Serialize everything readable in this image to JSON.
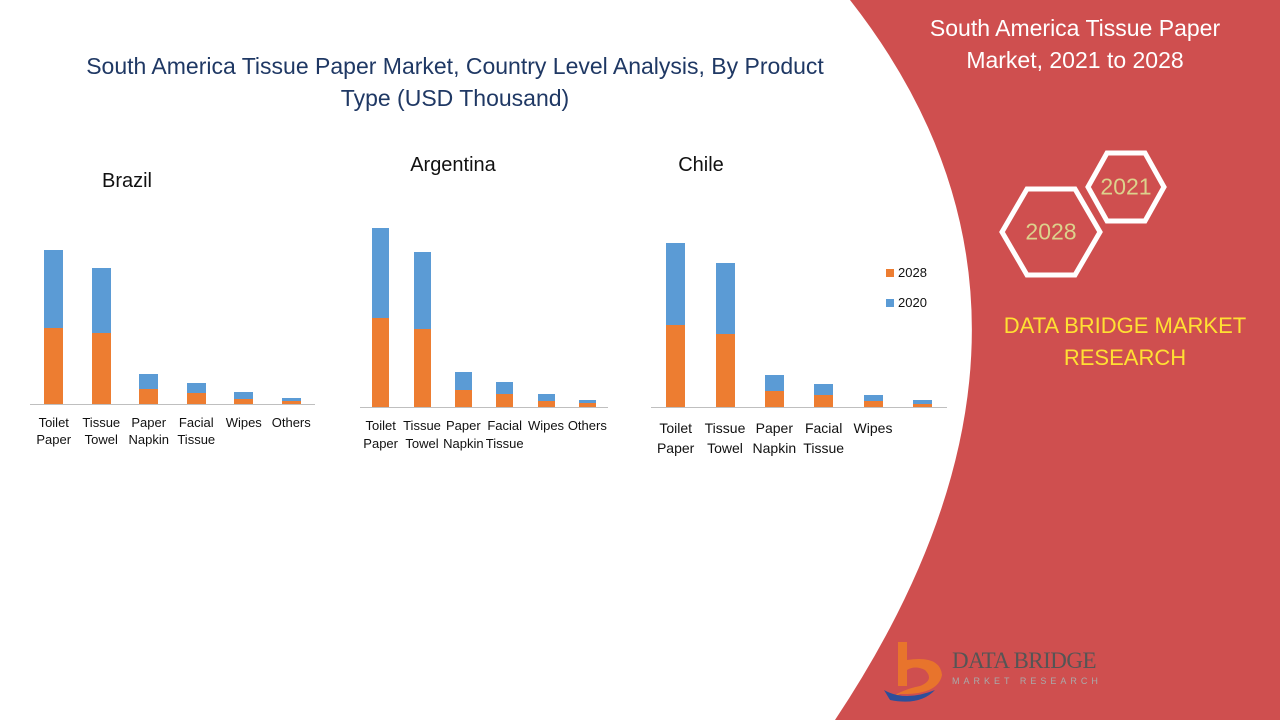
{
  "slide": {
    "title": "South America Tissue Paper Market, Country Level Analysis, By Product Type (USD Thousand)",
    "panel_title": "South America Tissue Paper Market, 2021 to 2028",
    "hex_top": "2021",
    "hex_bottom": "2028",
    "brand": "DATA BRIDGE MARKET RESEARCH",
    "logo_name": "DATA BRIDGE",
    "logo_tagline": "MARKET RESEARCH"
  },
  "chart_data": [
    {
      "type": "stacked-bar",
      "title": "Brazil",
      "categories": [
        "Toilet Paper",
        "Tissue Towel",
        "Paper Napkin",
        "Facial Tissue",
        "Wipes",
        "Others"
      ],
      "series": [
        {
          "name": "2028",
          "color": "#ed7d31",
          "values": [
            76,
            71,
            15,
            11,
            5,
            3
          ]
        },
        {
          "name": "2020",
          "color": "#5b9bd5",
          "values": [
            78,
            65,
            15,
            10,
            7,
            3
          ]
        }
      ],
      "legend": false
    },
    {
      "type": "stacked-bar",
      "title": "Argentina",
      "categories": [
        "Toilet Paper",
        "Tissue Towel",
        "Paper Napkin",
        "Facial Tissue",
        "Wipes",
        "Others"
      ],
      "series": [
        {
          "name": "2028",
          "color": "#ed7d31",
          "values": [
            89,
            78,
            17,
            13,
            6,
            4
          ]
        },
        {
          "name": "2020",
          "color": "#5b9bd5",
          "values": [
            90,
            77,
            18,
            12,
            7,
            3
          ]
        }
      ],
      "legend": false
    },
    {
      "type": "stacked-bar",
      "title": "Chile",
      "categories": [
        "Toilet Paper",
        "Tissue Towel",
        "Paper Napkin",
        "Facial Tissue",
        "Wipes",
        null
      ],
      "series": [
        {
          "name": "2028",
          "color": "#ed7d31",
          "values": [
            82,
            73,
            16,
            12,
            6,
            3
          ]
        },
        {
          "name": "2020",
          "color": "#5b9bd5",
          "values": [
            82,
            71,
            16,
            11,
            6,
            4
          ]
        }
      ],
      "legend": true
    }
  ]
}
